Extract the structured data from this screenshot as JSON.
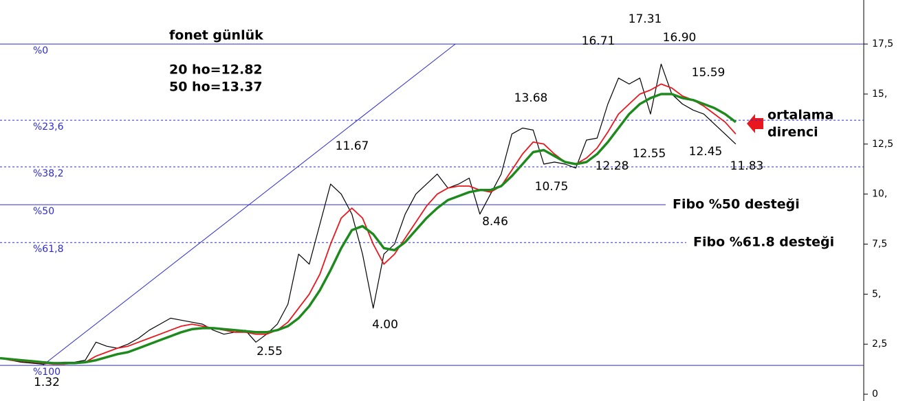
{
  "chart_data": {
    "type": "line",
    "title": "fonet günlük",
    "subtitle": [
      "20 ho=12.82",
      "50 ho=13.37"
    ],
    "x": [
      0,
      1,
      2,
      3,
      4,
      5,
      6,
      7,
      8,
      9,
      10,
      11,
      12,
      13,
      14,
      15,
      16,
      17,
      18,
      19,
      20,
      21,
      22,
      23,
      24,
      25,
      26,
      27,
      28,
      29,
      30,
      31,
      32,
      33,
      34,
      35,
      36,
      37,
      38,
      39,
      40,
      41,
      42,
      43,
      44,
      45,
      46,
      47,
      48,
      49,
      50,
      51,
      52,
      53,
      54,
      55,
      56,
      57,
      58,
      59,
      60,
      61,
      62,
      63,
      64,
      65,
      66,
      67,
      68,
      69
    ],
    "xlim": [
      0,
      81
    ],
    "ylim": [
      -0.34,
      19.7
    ],
    "yticks": [
      {
        "value": 0,
        "label": "0"
      },
      {
        "value": 2.5,
        "label": "2,5"
      },
      {
        "value": 5,
        "label": "5,"
      },
      {
        "value": 7.5,
        "label": "7,5"
      },
      {
        "value": 10,
        "label": "10,"
      },
      {
        "value": 12.5,
        "label": "12,5"
      },
      {
        "value": 15,
        "label": "15,"
      },
      {
        "value": 17.5,
        "label": "17,5"
      }
    ],
    "series": [
      {
        "color": "#000000",
        "values": [
          1.8,
          1.7,
          1.6,
          1.55,
          1.5,
          1.55,
          1.6,
          1.6,
          1.7,
          2.6,
          2.4,
          2.3,
          2.5,
          2.8,
          3.2,
          3.5,
          3.8,
          3.7,
          3.6,
          3.5,
          3.2,
          3.0,
          3.1,
          3.2,
          2.6,
          3.0,
          3.5,
          4.5,
          7.0,
          6.5,
          8.5,
          10.5,
          10.0,
          9.0,
          7.0,
          4.3,
          7.0,
          7.5,
          9.0,
          10.0,
          10.5,
          11.0,
          10.3,
          10.5,
          10.8,
          9.0,
          10.0,
          11.0,
          13.0,
          13.3,
          13.2,
          11.5,
          11.6,
          11.5,
          11.3,
          12.7,
          12.8,
          14.5,
          15.8,
          15.5,
          15.8,
          14.0,
          16.5,
          15.0,
          14.5,
          14.2,
          14.0,
          13.5,
          13.0,
          12.5
        ]
      },
      {
        "color": "#e8171e",
        "values": [
          1.8,
          1.7,
          1.65,
          1.6,
          1.55,
          1.5,
          1.5,
          1.55,
          1.6,
          1.9,
          2.1,
          2.3,
          2.4,
          2.6,
          2.8,
          3.0,
          3.2,
          3.4,
          3.5,
          3.4,
          3.3,
          3.2,
          3.1,
          3.1,
          3.0,
          3.0,
          3.2,
          3.6,
          4.3,
          5.0,
          6.0,
          7.5,
          8.8,
          9.3,
          8.8,
          7.5,
          6.5,
          7.0,
          7.8,
          8.6,
          9.4,
          10.0,
          10.3,
          10.4,
          10.4,
          10.2,
          10.1,
          10.4,
          11.2,
          12.0,
          12.6,
          12.5,
          12.0,
          11.6,
          11.5,
          11.8,
          12.3,
          13.1,
          14.0,
          14.5,
          15.0,
          15.2,
          15.5,
          15.3,
          14.9,
          14.7,
          14.4,
          14.0,
          13.6,
          13.0
        ]
      },
      {
        "color": "#1e8a1e",
        "values": [
          1.8,
          1.75,
          1.7,
          1.65,
          1.6,
          1.55,
          1.55,
          1.55,
          1.6,
          1.7,
          1.85,
          2.0,
          2.1,
          2.3,
          2.5,
          2.7,
          2.9,
          3.1,
          3.25,
          3.3,
          3.3,
          3.25,
          3.2,
          3.15,
          3.1,
          3.1,
          3.2,
          3.4,
          3.8,
          4.4,
          5.2,
          6.2,
          7.3,
          8.2,
          8.4,
          8.0,
          7.3,
          7.2,
          7.6,
          8.2,
          8.8,
          9.3,
          9.7,
          9.9,
          10.1,
          10.2,
          10.2,
          10.4,
          10.9,
          11.5,
          12.1,
          12.2,
          11.9,
          11.6,
          11.5,
          11.6,
          12.0,
          12.6,
          13.3,
          14.0,
          14.5,
          14.8,
          15.0,
          15.0,
          14.8,
          14.7,
          14.5,
          14.3,
          14.0,
          13.6
        ]
      }
    ],
    "fib_color": "#2b2bd0",
    "fib_levels": [
      {
        "label": "%0",
        "value": 17.5,
        "style": "solid"
      },
      {
        "label": "%23,6",
        "value": 13.69,
        "style": "dashed"
      },
      {
        "label": "%38,2",
        "value": 11.36,
        "style": "dashed"
      },
      {
        "label": "%50",
        "value": 9.47,
        "style": "solid",
        "note": "Fibo %50 desteği"
      },
      {
        "label": "%61,8",
        "value": 7.58,
        "style": "dashed",
        "note": "Fibo %61.8 desteği"
      },
      {
        "label": "%100",
        "value": 1.44,
        "style": "solid"
      }
    ],
    "trendline": {
      "x": [
        4,
        42.7
      ],
      "y": [
        1.44,
        17.5
      ]
    },
    "price_labels": [
      "17.31",
      "16.71",
      "16.90",
      "15.59",
      "13.68",
      "11.67",
      "12.55",
      "12.45",
      "12.28",
      "11.83",
      "10.75",
      "8.46",
      "4.00",
      "2.55",
      "1.32"
    ],
    "callout": [
      "ortalama",
      "direnci"
    ]
  }
}
